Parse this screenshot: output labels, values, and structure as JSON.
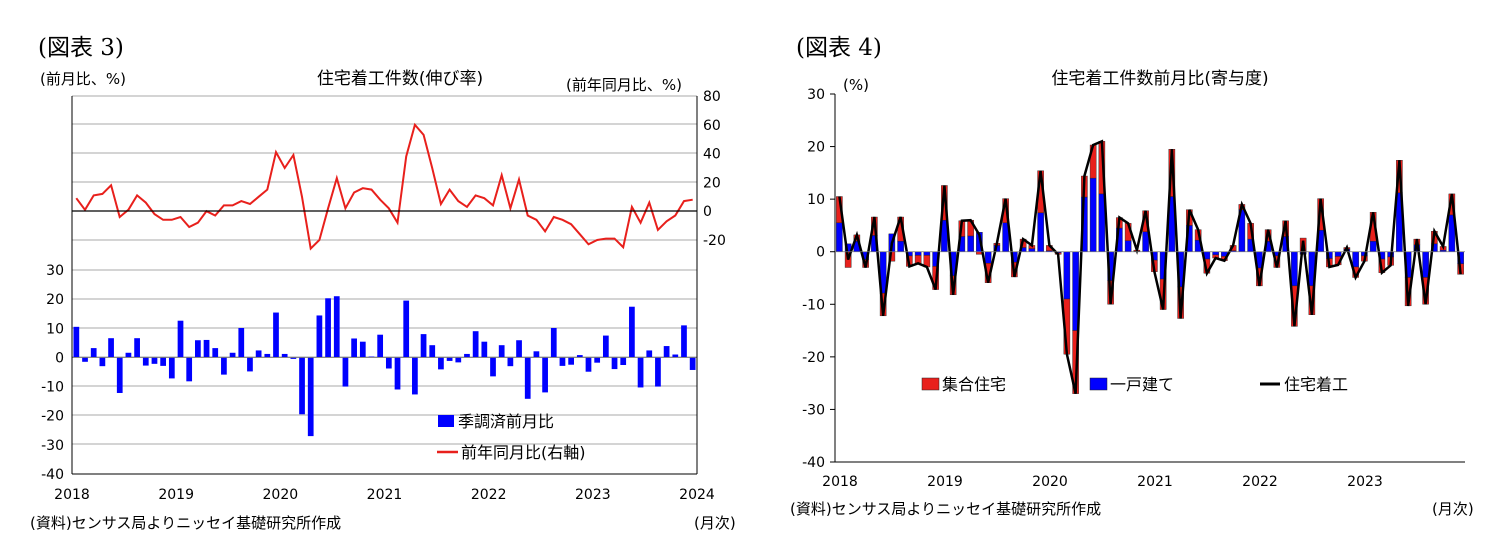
{
  "figures": [
    {
      "label": "(図表 3)",
      "source": "(資料)センサス局よりニッセイ基礎研究所作成",
      "month_unit": "(月次)"
    },
    {
      "label": "(図表 4)",
      "source": "(資料)センサス局よりニッセイ基礎研究所作成",
      "month_unit": "(月次)"
    }
  ],
  "chart_data": [
    {
      "type": "bar",
      "title": "住宅着工件数(伸び率)",
      "ylabel_left": "(前月比、%)",
      "ylabel_right": "(前年同月比、%)",
      "x_start": "2018-01",
      "x_ticks": [
        "2018",
        "2019",
        "2020",
        "2021",
        "2022",
        "2023",
        "2024"
      ],
      "left_axis": {
        "min": -40,
        "max": 30,
        "ticks": [
          30,
          20,
          10,
          0,
          -10,
          -20,
          -30,
          -40
        ]
      },
      "right_axis": {
        "min": -20,
        "max": 80,
        "ticks": [
          80,
          60,
          40,
          20,
          0,
          -20
        ]
      },
      "legend_position": "bottom-right",
      "grid": "horizontal",
      "series": [
        {
          "name": "季調済前月比",
          "type": "bar",
          "axis": "left",
          "color": "#0000ff",
          "values": [
            10.5,
            -1.5,
            3.2,
            -3.0,
            6.6,
            -12.2,
            1.6,
            6.6,
            -2.8,
            -2.2,
            -2.9,
            -7.2,
            12.6,
            -8.2,
            5.9,
            6.0,
            3.2,
            -5.9,
            1.6,
            10.1,
            -4.8,
            2.4,
            1.2,
            15.4,
            1.2,
            -0.5,
            -19.5,
            -27.0,
            14.4,
            20.3,
            21.0,
            -10.0,
            6.5,
            5.4,
            0.3,
            7.8,
            -3.8,
            -11.0,
            19.5,
            -12.7,
            8.0,
            4.2,
            -4.1,
            -1.2,
            -1.7,
            1.2,
            9.0,
            5.4,
            -6.5,
            4.2,
            -3.0,
            5.9,
            -14.2,
            2.1,
            -12.0,
            10.1,
            -2.9,
            -2.5,
            0.8,
            -4.9,
            -1.8,
            7.5,
            -4.0,
            -2.6,
            17.4,
            -10.3,
            2.4,
            -10.0,
            3.9,
            1.0,
            11.0,
            -4.3
          ]
        },
        {
          "name": "前年同月比(右軸)",
          "type": "line",
          "axis": "right",
          "color": "#e8201c",
          "values": [
            9,
            1,
            11,
            12,
            18,
            -4,
            1,
            11,
            6,
            -2,
            -6,
            -6,
            -4,
            -11,
            -8,
            0,
            -3,
            4,
            4,
            7,
            5,
            10,
            15,
            41,
            30,
            39,
            10,
            -26,
            -20,
            2,
            23,
            2,
            13,
            16,
            15,
            8,
            2,
            -8,
            38,
            60,
            53,
            30,
            5,
            15,
            7,
            3,
            11,
            9,
            4,
            25,
            2,
            22,
            -3,
            -6,
            -14,
            -4,
            -6,
            -9,
            -16,
            -23,
            -20,
            -19,
            -19,
            -25,
            3,
            -8,
            6,
            -13,
            -7,
            -3,
            7,
            8
          ]
        }
      ]
    },
    {
      "type": "bar",
      "subtype": "stacked-bar-with-line",
      "title": "住宅着工件数前月比(寄与度)",
      "ylabel": "(%)",
      "x_start": "2018-01",
      "x_ticks": [
        "2018",
        "2019",
        "2020",
        "2021",
        "2022",
        "2023"
      ],
      "ylim": [
        -40,
        30
      ],
      "y_ticks": [
        30,
        20,
        10,
        0,
        -10,
        -20,
        -30,
        -40
      ],
      "legend_position": "bottom",
      "grid": "none",
      "series": [
        {
          "name": "集合住宅",
          "type": "bar",
          "color": "#e8201c",
          "values": [
            5.0,
            -3.0,
            1.2,
            -1.5,
            3.5,
            -4.3,
            -1.8,
            4.6,
            -2.0,
            -1.5,
            -2.2,
            -4.4,
            6.6,
            -3.6,
            3.0,
            3.0,
            -0.5,
            -3.7,
            0.4,
            4.6,
            -2.8,
            1.6,
            0.6,
            8.0,
            1.0,
            -0.3,
            -10.5,
            -12.0,
            4.0,
            6.3,
            10.0,
            -4.5,
            2.0,
            3.3,
            0.2,
            4.0,
            -2.2,
            -5.8,
            9.0,
            -6.0,
            3.0,
            2.0,
            -2.7,
            -0.6,
            -0.8,
            1.0,
            1.0,
            3.0,
            -3.4,
            2.2,
            -2.2,
            3.0,
            -7.7,
            2.6,
            -5.5,
            6.0,
            -1.6,
            -1.6,
            0.3,
            -2.0,
            -1.0,
            5.5,
            -2.6,
            -1.6,
            6.2,
            -5.4,
            1.1,
            -5.1,
            2.4,
            0.7,
            4.0,
            -2.0
          ]
        },
        {
          "name": "一戸建て",
          "type": "bar",
          "color": "#0000ff",
          "values": [
            5.5,
            1.5,
            2.0,
            -1.5,
            3.1,
            -7.9,
            3.4,
            2.0,
            -0.8,
            -0.7,
            -0.7,
            -2.8,
            6.0,
            -4.6,
            2.9,
            3.0,
            3.7,
            -2.2,
            1.2,
            5.5,
            -2.0,
            0.8,
            0.6,
            7.4,
            0.2,
            -0.2,
            -9.0,
            -15.0,
            10.4,
            14.0,
            11.0,
            -5.5,
            4.5,
            2.1,
            0.1,
            3.8,
            -1.6,
            -5.2,
            10.5,
            -6.7,
            5.0,
            2.2,
            -1.4,
            -0.6,
            -0.9,
            0.2,
            8.0,
            2.4,
            -3.1,
            2.0,
            -0.8,
            2.9,
            -6.5,
            -0.5,
            -6.5,
            4.1,
            -1.3,
            -0.9,
            0.5,
            -2.9,
            -0.8,
            2.0,
            -1.4,
            -1.0,
            11.2,
            -4.9,
            1.3,
            -4.9,
            1.5,
            0.3,
            7.0,
            -2.3
          ]
        },
        {
          "name": "住宅着工",
          "type": "line",
          "color": "#000000",
          "values": [
            10.5,
            -1.5,
            3.2,
            -3.0,
            6.6,
            -12.2,
            1.6,
            6.6,
            -2.8,
            -2.2,
            -2.9,
            -7.2,
            12.6,
            -8.2,
            5.9,
            6.0,
            3.2,
            -5.9,
            1.6,
            10.1,
            -4.8,
            2.4,
            1.2,
            15.4,
            1.2,
            -0.5,
            -19.5,
            -27.0,
            14.4,
            20.3,
            21.0,
            -10.0,
            6.5,
            5.4,
            0.3,
            7.8,
            -3.8,
            -11.0,
            19.5,
            -12.7,
            8.0,
            4.2,
            -4.1,
            -1.2,
            -1.7,
            1.2,
            9.0,
            5.4,
            -6.5,
            4.2,
            -3.0,
            5.9,
            -14.2,
            2.1,
            -12.0,
            10.1,
            -2.9,
            -2.5,
            0.8,
            -4.9,
            -1.8,
            7.5,
            -4.0,
            -2.6,
            17.4,
            -10.3,
            2.4,
            -10.0,
            3.9,
            1.0,
            11.0,
            -4.3
          ]
        }
      ]
    }
  ]
}
